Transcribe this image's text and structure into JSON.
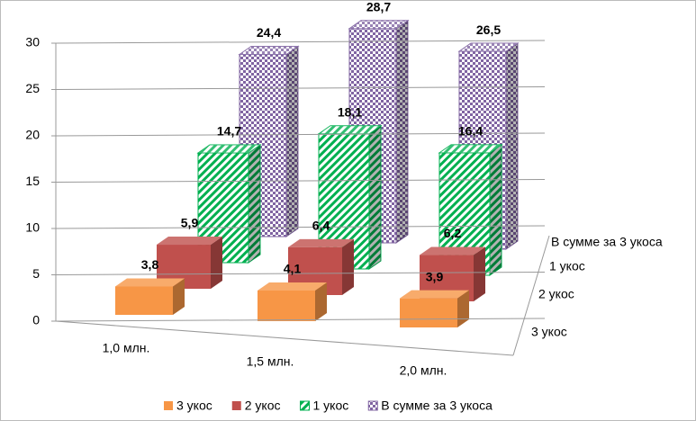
{
  "chart_data": {
    "type": "bar3d",
    "categories": [
      "1,0 млн.",
      "1,5 млн.",
      "2,0 млн."
    ],
    "series": [
      {
        "name": "3 укос",
        "color": "#f79646",
        "pattern": "solid",
        "values": [
          3.8,
          4.1,
          3.9
        ],
        "value_labels": [
          "3,8",
          "4,1",
          "3,9"
        ]
      },
      {
        "name": "2 укос",
        "color": "#c0504d",
        "pattern": "solid",
        "values": [
          5.9,
          6.4,
          6.2
        ],
        "value_labels": [
          "5,9",
          "6,4",
          "6,2"
        ]
      },
      {
        "name": "1 укос",
        "color": "#00b050",
        "pattern": "diagonal",
        "values": [
          14.7,
          18.1,
          16.4
        ],
        "value_labels": [
          "14,7",
          "18,1",
          "16,4"
        ]
      },
      {
        "name": "В сумме за 3 укоса",
        "color": "#8064a2",
        "pattern": "checker",
        "values": [
          24.4,
          28.7,
          26.5
        ],
        "value_labels": [
          "24,4",
          "28,7",
          "26,5"
        ]
      }
    ],
    "ylim": [
      0,
      30
    ],
    "yticks": [
      0,
      5,
      10,
      15,
      20,
      25,
      30
    ],
    "grid": true,
    "legend": "bottom"
  }
}
